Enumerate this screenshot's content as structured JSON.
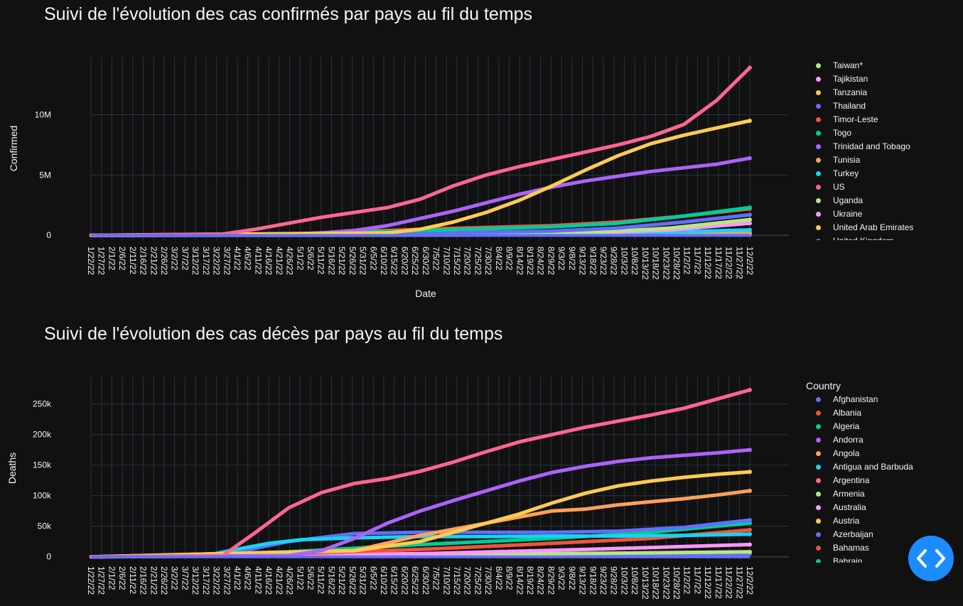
{
  "chart_data": [
    {
      "type": "line",
      "title": "Suivi de l'évolution des cas confirmés par pays au fil du temps",
      "xlabel": "Date",
      "ylabel": "Confirmed",
      "ylim": [
        -400000,
        14800000
      ],
      "yticks": [
        0,
        5000000,
        10000000
      ],
      "ytick_labels": [
        "0",
        "5M",
        "10M"
      ],
      "xlim": [
        "1/22/20",
        "12/2/22"
      ],
      "legend_placement": "right",
      "legend_title": "",
      "legend_entries": [
        {
          "name": "Taiwan*",
          "color": "#b6e880"
        },
        {
          "name": "Tajikistan",
          "color": "#ff97ff"
        },
        {
          "name": "Tanzania",
          "color": "#fecb52"
        },
        {
          "name": "Thailand",
          "color": "#636efa"
        },
        {
          "name": "Timor-Leste",
          "color": "#ef553b"
        },
        {
          "name": "Togo",
          "color": "#00cc96"
        },
        {
          "name": "Trinidad and Tobago",
          "color": "#ab63fa"
        },
        {
          "name": "Tunisia",
          "color": "#ffa15a"
        },
        {
          "name": "Turkey",
          "color": "#19d3f3"
        },
        {
          "name": "US",
          "color": "#ff6692"
        },
        {
          "name": "Uganda",
          "color": "#b6e880"
        },
        {
          "name": "Ukraine",
          "color": "#ff97ff"
        },
        {
          "name": "United Arab Emirates",
          "color": "#fecb52"
        },
        {
          "name": "United Kingdom",
          "color": "#636efa"
        }
      ],
      "series": [
        {
          "name": "US",
          "color": "#ff6692",
          "x_frac": [
            0,
            0.2,
            0.25,
            0.3,
            0.35,
            0.4,
            0.45,
            0.5,
            0.55,
            0.6,
            0.65,
            0.7,
            0.75,
            0.8,
            0.85,
            0.9,
            0.95,
            1.0
          ],
          "values": [
            0,
            100000,
            500000,
            1000000,
            1500000,
            1900000,
            2300000,
            3000000,
            4100000,
            5000000,
            5700000,
            6300000,
            6900000,
            7500000,
            8200000,
            9200000,
            11200000,
            13900000
          ]
        },
        {
          "name": "United Arab Emirates",
          "color": "#fecb52",
          "x_frac": [
            0,
            0.45,
            0.5,
            0.55,
            0.6,
            0.65,
            0.7,
            0.75,
            0.8,
            0.85,
            0.9,
            0.95,
            1.0
          ],
          "values": [
            0,
            200000,
            500000,
            1100000,
            1900000,
            2900000,
            4100000,
            5400000,
            6600000,
            7600000,
            8300000,
            8900000,
            9500000
          ]
        },
        {
          "name": "Trinidad and Tobago",
          "color": "#ab63fa",
          "x_frac": [
            0,
            0.3,
            0.35,
            0.4,
            0.45,
            0.5,
            0.55,
            0.6,
            0.65,
            0.7,
            0.75,
            0.8,
            0.85,
            0.9,
            0.95,
            1.0
          ],
          "values": [
            0,
            50000,
            200000,
            400000,
            800000,
            1400000,
            2000000,
            2700000,
            3400000,
            4000000,
            4500000,
            4900000,
            5300000,
            5600000,
            5900000,
            6400000
          ]
        },
        {
          "name": "Togo",
          "color": "#00cc96",
          "x_frac": [
            0,
            0.3,
            0.5,
            0.7,
            0.8,
            0.9,
            1.0
          ],
          "values": [
            0,
            100000,
            400000,
            700000,
            1000000,
            1600000,
            2300000
          ]
        },
        {
          "name": "Timor-Leste",
          "color": "#ef553b",
          "x_frac": [
            0,
            0.3,
            0.5,
            0.7,
            0.8,
            0.9,
            1.0
          ],
          "values": [
            0,
            100000,
            500000,
            800000,
            1100000,
            1600000,
            2200000
          ]
        },
        {
          "name": "United Kingdom",
          "color": "#636efa",
          "x_frac": [
            0,
            0.3,
            0.5,
            0.7,
            0.8,
            0.9,
            1.0
          ],
          "values": [
            0,
            80000,
            200000,
            350000,
            600000,
            1100000,
            1700000
          ]
        },
        {
          "name": "Uganda",
          "color": "#b6e880",
          "x_frac": [
            0,
            0.5,
            0.75,
            0.88,
            1.0
          ],
          "values": [
            0,
            50000,
            200000,
            600000,
            1300000
          ]
        },
        {
          "name": "Ukraine",
          "color": "#ff97ff",
          "x_frac": [
            0,
            0.5,
            0.75,
            0.88,
            1.0
          ],
          "values": [
            0,
            40000,
            150000,
            450000,
            1000000
          ]
        },
        {
          "name": "Turkey",
          "color": "#19d3f3",
          "x_frac": [
            0,
            0.5,
            0.8,
            1.0
          ],
          "values": [
            0,
            30000,
            150000,
            450000
          ]
        },
        {
          "name": "Tunisia",
          "color": "#ffa15a",
          "x_frac": [
            0,
            0.5,
            0.8,
            1.0
          ],
          "values": [
            0,
            20000,
            80000,
            200000
          ]
        },
        {
          "name": "Thailand",
          "color": "#636efa",
          "x_frac": [
            0,
            1.0
          ],
          "values": [
            0,
            30000
          ]
        }
      ],
      "x_tick_labels": [
        "1/22/22",
        "1/27/22",
        "2/1/22",
        "2/6/22",
        "2/11/22",
        "2/16/22",
        "2/21/22",
        "2/26/22",
        "3/2/22",
        "3/7/22",
        "3/12/22",
        "3/17/22",
        "3/22/22",
        "3/27/22",
        "4/1/22",
        "4/6/22",
        "4/11/22",
        "4/16/22",
        "4/21/22",
        "4/26/22",
        "5/1/22",
        "5/6/22",
        "5/11/22",
        "5/16/22",
        "5/21/22",
        "5/26/22",
        "5/31/22",
        "6/5/22",
        "6/10/22",
        "6/15/22",
        "6/20/22",
        "6/25/22",
        "6/30/22",
        "7/5/22",
        "7/10/22",
        "7/15/22",
        "7/20/22",
        "7/25/22",
        "7/30/22",
        "8/4/22",
        "8/9/22",
        "8/14/22",
        "8/19/22",
        "8/24/22",
        "8/29/22",
        "9/3/22",
        "9/8/22",
        "9/13/22",
        "9/18/22",
        "9/23/22",
        "9/28/22",
        "10/3/22",
        "10/8/22",
        "10/13/22",
        "10/18/22",
        "10/23/22",
        "10/28/22",
        "11/2/22",
        "11/7/22",
        "11/12/22",
        "11/17/22",
        "11/22/22",
        "11/27/22",
        "12/2/22"
      ]
    },
    {
      "type": "line",
      "title": "Suivi de l'évolution des cas décès par pays au fil du temps",
      "xlabel": "",
      "ylabel": "Deaths",
      "ylim": [
        -5000,
        295000
      ],
      "yticks": [
        0,
        50000,
        100000,
        150000,
        200000,
        250000
      ],
      "ytick_labels": [
        "0",
        "50k",
        "100k",
        "150k",
        "200k",
        "250k"
      ],
      "xlim": [
        "1/22/20",
        "12/2/22"
      ],
      "legend_placement": "right",
      "legend_title": "Country",
      "legend_entries": [
        {
          "name": "Afghanistan",
          "color": "#636efa"
        },
        {
          "name": "Albania",
          "color": "#ef553b"
        },
        {
          "name": "Algeria",
          "color": "#00cc96"
        },
        {
          "name": "Andorra",
          "color": "#ab63fa"
        },
        {
          "name": "Angola",
          "color": "#ffa15a"
        },
        {
          "name": "Antigua and Barbuda",
          "color": "#19d3f3"
        },
        {
          "name": "Argentina",
          "color": "#ff6692"
        },
        {
          "name": "Armenia",
          "color": "#b6e880"
        },
        {
          "name": "Australia",
          "color": "#ff97ff"
        },
        {
          "name": "Austria",
          "color": "#fecb52"
        },
        {
          "name": "Azerbaijan",
          "color": "#636efa"
        },
        {
          "name": "Bahamas",
          "color": "#ef553b"
        },
        {
          "name": "Bahrain",
          "color": "#00cc96"
        }
      ],
      "series": [
        {
          "name": "Argentina",
          "color": "#ff6692",
          "x_frac": [
            0,
            0.2,
            0.25,
            0.3,
            0.35,
            0.4,
            0.45,
            0.5,
            0.55,
            0.6,
            0.65,
            0.7,
            0.75,
            0.8,
            0.85,
            0.9,
            0.95,
            1.0
          ],
          "values": [
            0,
            2000,
            40000,
            80000,
            105000,
            120000,
            128000,
            140000,
            155000,
            172000,
            188000,
            200000,
            212000,
            222000,
            232000,
            243000,
            258000,
            273000
          ]
        },
        {
          "name": "Andorra",
          "color": "#ab63fa",
          "x_frac": [
            0,
            0.3,
            0.35,
            0.4,
            0.45,
            0.5,
            0.55,
            0.6,
            0.65,
            0.7,
            0.75,
            0.8,
            0.85,
            0.9,
            0.95,
            1.0
          ],
          "values": [
            0,
            2000,
            10000,
            30000,
            55000,
            75000,
            92000,
            108000,
            124000,
            138000,
            148000,
            156000,
            162000,
            166000,
            170000,
            175000
          ]
        },
        {
          "name": "Austria",
          "color": "#fecb52",
          "x_frac": [
            0,
            0.4,
            0.5,
            0.55,
            0.6,
            0.65,
            0.7,
            0.75,
            0.8,
            0.85,
            0.9,
            0.95,
            1.0
          ],
          "values": [
            0,
            10000,
            25000,
            40000,
            55000,
            70000,
            88000,
            104000,
            116000,
            124000,
            130000,
            135000,
            139000
          ]
        },
        {
          "name": "Angola",
          "color": "#ffa15a",
          "x_frac": [
            0,
            0.4,
            0.5,
            0.55,
            0.6,
            0.65,
            0.7,
            0.75,
            0.8,
            0.85,
            0.9,
            0.95,
            1.0
          ],
          "values": [
            0,
            10000,
            35000,
            45000,
            55000,
            65000,
            75000,
            78000,
            85000,
            90000,
            95000,
            101000,
            108000
          ]
        },
        {
          "name": "Antigua and Barbuda",
          "color": "#19d3f3",
          "x_frac": [
            0,
            0.17,
            0.22,
            0.27,
            0.32,
            0.4,
            0.5,
            0.6,
            0.7,
            0.8,
            0.9,
            1.0
          ],
          "values": [
            0,
            1000,
            12000,
            22000,
            28000,
            31000,
            33000,
            33000,
            34000,
            34000,
            35000,
            37000
          ]
        },
        {
          "name": "Afghanistan",
          "color": "#636efa",
          "x_frac": [
            0,
            0.2,
            0.3,
            0.4,
            0.5,
            0.6,
            0.7,
            0.8,
            0.9,
            1.0
          ],
          "values": [
            0,
            3000,
            25000,
            38000,
            40000,
            40000,
            40000,
            42000,
            48000,
            60000
          ]
        },
        {
          "name": "Algeria",
          "color": "#00cc96",
          "x_frac": [
            0,
            0.3,
            0.5,
            0.7,
            0.85,
            1.0
          ],
          "values": [
            0,
            8000,
            20000,
            30000,
            40000,
            55000
          ]
        },
        {
          "name": "Albania",
          "color": "#ef553b",
          "x_frac": [
            0,
            0.3,
            0.5,
            0.7,
            0.85,
            1.0
          ],
          "values": [
            0,
            5000,
            12000,
            22000,
            30000,
            44000
          ]
        },
        {
          "name": "Australia",
          "color": "#ff97ff",
          "x_frac": [
            0,
            0.5,
            0.75,
            1.0
          ],
          "values": [
            0,
            5000,
            12000,
            20000
          ]
        },
        {
          "name": "Armenia",
          "color": "#b6e880",
          "x_frac": [
            0,
            0.5,
            1.0
          ],
          "values": [
            0,
            3000,
            8000
          ]
        },
        {
          "name": "Azerbaijan",
          "color": "#636efa",
          "x_frac": [
            0,
            1.0
          ],
          "values": [
            0,
            5000
          ]
        }
      ],
      "x_tick_labels": [
        "1/22/22",
        "1/27/22",
        "2/1/22",
        "2/6/22",
        "2/11/22",
        "2/16/22",
        "2/21/22",
        "2/26/22",
        "3/2/22",
        "3/7/22",
        "3/12/22",
        "3/17/22",
        "3/22/22",
        "3/27/22",
        "4/1/22",
        "4/6/22",
        "4/11/22",
        "4/16/22",
        "4/21/22",
        "4/26/22",
        "5/1/22",
        "5/6/22",
        "5/11/22",
        "5/16/22",
        "5/21/22",
        "5/26/22",
        "5/31/22",
        "6/5/22",
        "6/10/22",
        "6/15/22",
        "6/20/22",
        "6/25/22",
        "6/30/22",
        "7/5/22",
        "7/10/22",
        "7/15/22",
        "7/20/22",
        "7/25/22",
        "7/30/22",
        "8/4/22",
        "8/9/22",
        "8/14/22",
        "8/19/22",
        "8/24/22",
        "8/29/22",
        "9/3/22",
        "9/8/22",
        "9/13/22",
        "9/18/22",
        "9/23/22",
        "9/28/22",
        "10/3/22",
        "10/8/22",
        "10/13/22",
        "10/18/22",
        "10/23/22",
        "10/28/22",
        "11/2/22",
        "11/7/22",
        "11/12/22",
        "11/17/22",
        "11/22/22",
        "11/27/22",
        "12/2/22"
      ]
    }
  ],
  "colors": {
    "background": "#111111",
    "grid": "#283442",
    "text": "#f2f5fa",
    "code_button": "#1a8cff"
  },
  "code_button_icon": "code-brackets-icon"
}
